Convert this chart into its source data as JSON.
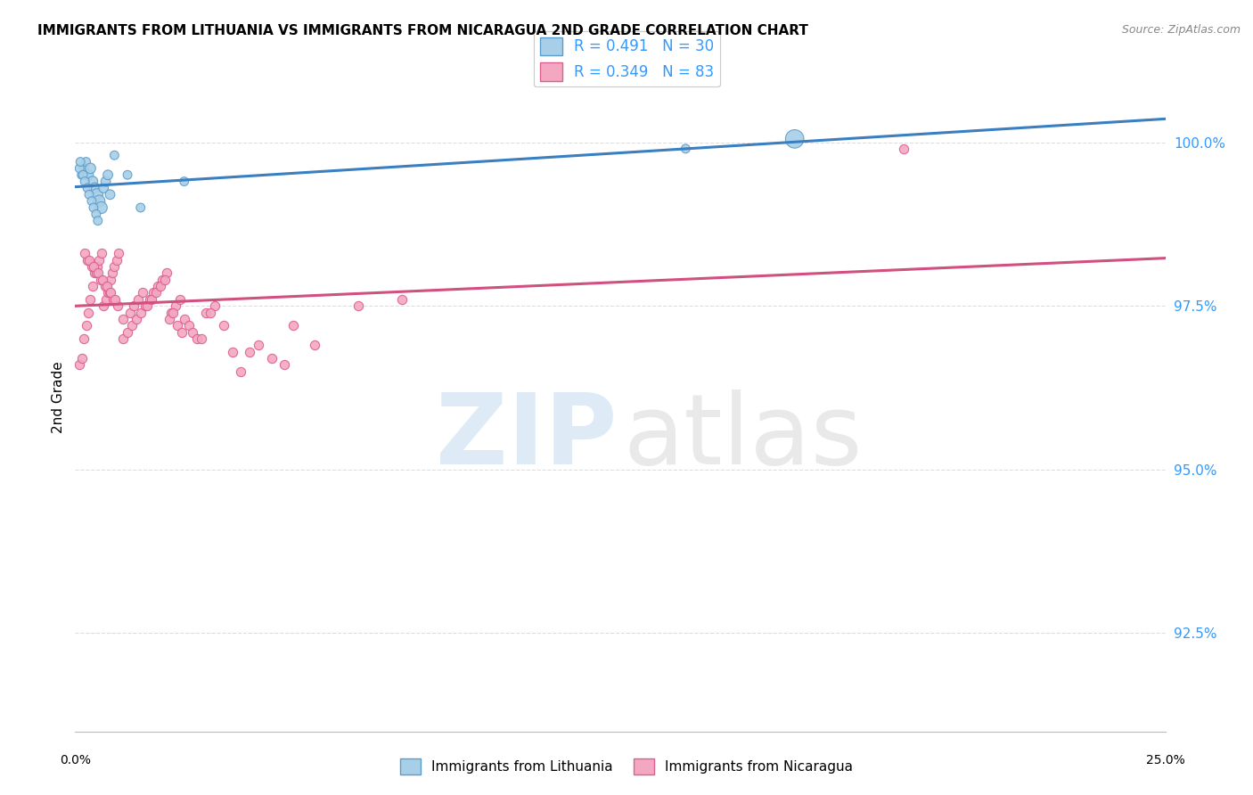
{
  "title": "IMMIGRANTS FROM LITHUANIA VS IMMIGRANTS FROM NICARAGUA 2ND GRADE CORRELATION CHART",
  "source": "Source: ZipAtlas.com",
  "ylabel": "2nd Grade",
  "ytick_values": [
    92.5,
    95.0,
    97.5,
    100.0
  ],
  "xmin": 0.0,
  "xmax": 25.0,
  "ymin": 91.0,
  "ymax": 101.2,
  "legend_label_blue": "R = 0.491   N = 30",
  "legend_label_pink": "R = 0.349   N = 83",
  "bottom_legend_blue": "Immigrants from Lithuania",
  "bottom_legend_pink": "Immigrants from Nicaragua",
  "blue_color": "#a8cfe8",
  "pink_color": "#f4a7c0",
  "blue_edge_color": "#5b9dc9",
  "pink_edge_color": "#d96090",
  "blue_line_color": "#3a7fc1",
  "pink_line_color": "#d05080",
  "blue_scatter_x": [
    0.15,
    0.2,
    0.25,
    0.3,
    0.35,
    0.4,
    0.45,
    0.5,
    0.55,
    0.6,
    0.65,
    0.7,
    0.75,
    0.8,
    0.9,
    1.2,
    1.5,
    2.5,
    0.1,
    0.12,
    0.18,
    0.22,
    0.28,
    0.32,
    0.38,
    0.42,
    0.48,
    0.52,
    14.0,
    16.5
  ],
  "blue_scatter_y": [
    99.5,
    99.6,
    99.7,
    99.5,
    99.6,
    99.4,
    99.3,
    99.2,
    99.1,
    99.0,
    99.3,
    99.4,
    99.5,
    99.2,
    99.8,
    99.5,
    99.0,
    99.4,
    99.6,
    99.7,
    99.5,
    99.4,
    99.3,
    99.2,
    99.1,
    99.0,
    98.9,
    98.8,
    99.9,
    100.05
  ],
  "blue_scatter_sizes": [
    50,
    50,
    50,
    70,
    70,
    70,
    70,
    90,
    90,
    90,
    60,
    60,
    60,
    60,
    50,
    50,
    50,
    50,
    50,
    50,
    50,
    50,
    50,
    50,
    50,
    50,
    50,
    50,
    50,
    220
  ],
  "pink_scatter_x": [
    0.1,
    0.15,
    0.2,
    0.25,
    0.3,
    0.35,
    0.4,
    0.45,
    0.5,
    0.55,
    0.6,
    0.65,
    0.7,
    0.75,
    0.8,
    0.85,
    0.9,
    0.95,
    1.0,
    1.1,
    1.2,
    1.3,
    1.4,
    1.5,
    1.6,
    1.7,
    1.8,
    1.9,
    2.0,
    2.1,
    2.2,
    2.3,
    2.4,
    2.5,
    2.6,
    2.7,
    2.8,
    3.0,
    3.2,
    3.4,
    3.6,
    3.8,
    4.0,
    4.2,
    4.5,
    5.0,
    5.5,
    6.5,
    1.1,
    1.25,
    1.35,
    1.45,
    1.55,
    0.28,
    0.38,
    0.48,
    0.58,
    0.68,
    0.78,
    0.88,
    0.98,
    0.22,
    0.32,
    0.42,
    0.52,
    0.62,
    0.72,
    0.82,
    0.92,
    2.9,
    3.1,
    1.65,
    1.75,
    1.85,
    1.95,
    2.05,
    2.15,
    2.25,
    2.35,
    2.45,
    4.8,
    7.5,
    19.0
  ],
  "pink_scatter_y": [
    96.6,
    96.7,
    97.0,
    97.2,
    97.4,
    97.6,
    97.8,
    98.0,
    98.1,
    98.2,
    98.3,
    97.5,
    97.6,
    97.7,
    97.9,
    98.0,
    98.1,
    98.2,
    98.3,
    97.0,
    97.1,
    97.2,
    97.3,
    97.4,
    97.5,
    97.6,
    97.7,
    97.8,
    97.9,
    98.0,
    97.4,
    97.5,
    97.6,
    97.3,
    97.2,
    97.1,
    97.0,
    97.4,
    97.5,
    97.2,
    96.8,
    96.5,
    96.8,
    96.9,
    96.7,
    97.2,
    96.9,
    97.5,
    97.3,
    97.4,
    97.5,
    97.6,
    97.7,
    98.2,
    98.1,
    98.0,
    97.9,
    97.8,
    97.7,
    97.6,
    97.5,
    98.3,
    98.2,
    98.1,
    98.0,
    97.9,
    97.8,
    97.7,
    97.6,
    97.0,
    97.4,
    97.5,
    97.6,
    97.7,
    97.8,
    97.9,
    97.3,
    97.4,
    97.2,
    97.1,
    96.6,
    97.6,
    99.9
  ],
  "watermark_zip_color": "#c8dff0",
  "watermark_atlas_color": "#c0c0c0"
}
